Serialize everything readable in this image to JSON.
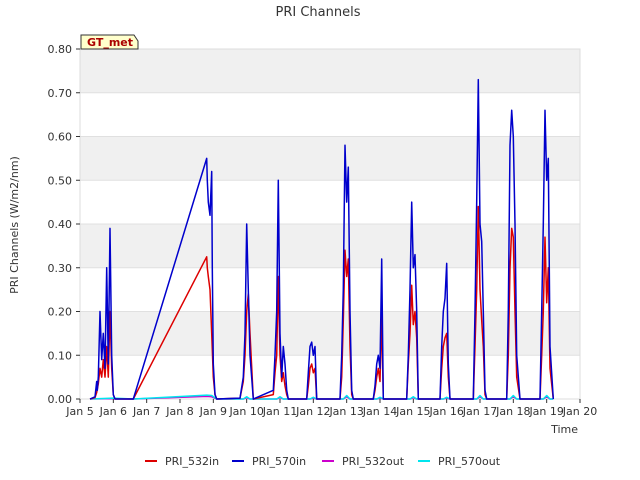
{
  "chart_data": {
    "type": "line",
    "title": "PRI Channels",
    "xlabel": "Time",
    "ylabel": "PRI Channels (W/m2/nm)",
    "badge": "GT_met",
    "xlim": [
      5,
      20
    ],
    "ylim": [
      0,
      0.8
    ],
    "x_ticks": [
      {
        "v": 5,
        "label": "Jan 5"
      },
      {
        "v": 6,
        "label": "Jan 6"
      },
      {
        "v": 7,
        "label": "Jan 7"
      },
      {
        "v": 8,
        "label": "Jan 8"
      },
      {
        "v": 9,
        "label": "Jan 9"
      },
      {
        "v": 10,
        "label": "Jan 10"
      },
      {
        "v": 11,
        "label": "Jan 11"
      },
      {
        "v": 12,
        "label": "Jan 12"
      },
      {
        "v": 13,
        "label": "Jan 13"
      },
      {
        "v": 14,
        "label": "Jan 14"
      },
      {
        "v": 15,
        "label": "Jan 15"
      },
      {
        "v": 16,
        "label": "Jan 16"
      },
      {
        "v": 17,
        "label": "Jan 17"
      },
      {
        "v": 18,
        "label": "Jan 18"
      },
      {
        "v": 19,
        "label": "Jan 19"
      },
      {
        "v": 20,
        "label": "Jan 20"
      }
    ],
    "y_ticks": [
      {
        "v": 0.0,
        "label": "0.00"
      },
      {
        "v": 0.1,
        "label": "0.10"
      },
      {
        "v": 0.2,
        "label": "0.20"
      },
      {
        "v": 0.3,
        "label": "0.30"
      },
      {
        "v": 0.4,
        "label": "0.40"
      },
      {
        "v": 0.5,
        "label": "0.50"
      },
      {
        "v": 0.6,
        "label": "0.60"
      },
      {
        "v": 0.7,
        "label": "0.70"
      },
      {
        "v": 0.8,
        "label": "0.80"
      }
    ],
    "legend_position": "bottom",
    "series": [
      {
        "name": "PRI_532in",
        "color": "#dd0000",
        "x": [
          5.3,
          5.45,
          5.5,
          5.55,
          5.6,
          5.65,
          5.7,
          5.75,
          5.8,
          5.85,
          5.9,
          5.95,
          6.0,
          6.05,
          6.6,
          8.8,
          8.82,
          8.85,
          8.9,
          8.95,
          9.0,
          9.05,
          9.1,
          9.8,
          9.9,
          9.95,
          10.0,
          10.05,
          10.1,
          10.2,
          10.8,
          10.85,
          10.9,
          10.95,
          11.0,
          11.05,
          11.1,
          11.15,
          11.2,
          11.25,
          11.8,
          11.85,
          11.9,
          11.95,
          12.0,
          12.05,
          12.1,
          12.8,
          12.85,
          12.9,
          12.95,
          13.0,
          13.05,
          13.1,
          13.15,
          13.2,
          13.8,
          13.85,
          13.9,
          13.95,
          14.0,
          14.05,
          14.1,
          14.8,
          14.85,
          14.9,
          14.95,
          15.0,
          15.05,
          15.1,
          15.15,
          15.8,
          15.85,
          15.9,
          15.95,
          16.0,
          16.05,
          16.1,
          16.8,
          16.85,
          16.9,
          16.95,
          17.0,
          17.05,
          17.1,
          17.15,
          17.2,
          17.8,
          17.85,
          17.9,
          17.95,
          18.0,
          18.05,
          18.1,
          18.2,
          18.8,
          18.85,
          18.9,
          18.95,
          19.0,
          19.05,
          19.1,
          19.2
        ],
        "y": [
          0,
          0.003,
          0.015,
          0.035,
          0.07,
          0.05,
          0.09,
          0.05,
          0.12,
          0.05,
          0.2,
          0.07,
          0.01,
          0,
          0,
          0.325,
          0.3,
          0.28,
          0.25,
          0.15,
          0.05,
          0.01,
          0,
          0.002,
          0.04,
          0.1,
          0.2,
          0.24,
          0.15,
          0,
          0.01,
          0.06,
          0.1,
          0.28,
          0.1,
          0.04,
          0.06,
          0.03,
          0.01,
          0,
          0,
          0.03,
          0.07,
          0.08,
          0.06,
          0.07,
          0,
          0,
          0.05,
          0.18,
          0.34,
          0.28,
          0.32,
          0.12,
          0.01,
          0,
          0,
          0.02,
          0.05,
          0.07,
          0.04,
          0.19,
          0,
          0,
          0.08,
          0.15,
          0.26,
          0.17,
          0.2,
          0.14,
          0,
          0,
          0.07,
          0.12,
          0.14,
          0.15,
          0.05,
          0,
          0,
          0.12,
          0.25,
          0.44,
          0.25,
          0.18,
          0.12,
          0.01,
          0,
          0,
          0.1,
          0.3,
          0.39,
          0.37,
          0.2,
          0.05,
          0,
          0,
          0.1,
          0.2,
          0.37,
          0.22,
          0.3,
          0.07,
          0
        ]
      },
      {
        "name": "PRI_570in",
        "color": "#0000cc",
        "x": [
          5.3,
          5.45,
          5.5,
          5.52,
          5.55,
          5.6,
          5.65,
          5.7,
          5.75,
          5.8,
          5.85,
          5.9,
          5.95,
          6.0,
          6.05,
          6.6,
          8.8,
          8.82,
          8.85,
          8.9,
          8.95,
          8.97,
          9.0,
          9.05,
          9.1,
          9.8,
          9.9,
          9.95,
          10.0,
          10.05,
          10.1,
          10.2,
          10.8,
          10.85,
          10.9,
          10.95,
          11.0,
          11.05,
          11.1,
          11.15,
          11.2,
          11.25,
          11.8,
          11.85,
          11.9,
          11.95,
          12.0,
          12.05,
          12.1,
          12.8,
          12.85,
          12.9,
          12.95,
          13.0,
          13.05,
          13.1,
          13.15,
          13.2,
          13.8,
          13.85,
          13.9,
          13.95,
          14.0,
          14.05,
          14.1,
          14.8,
          14.85,
          14.9,
          14.95,
          15.0,
          15.05,
          15.1,
          15.15,
          15.8,
          15.85,
          15.9,
          15.95,
          16.0,
          16.05,
          16.1,
          16.8,
          16.85,
          16.9,
          16.95,
          17.0,
          17.05,
          17.1,
          17.15,
          17.2,
          17.8,
          17.85,
          17.9,
          17.95,
          18.0,
          18.05,
          18.1,
          18.2,
          18.8,
          18.85,
          18.9,
          18.95,
          19.0,
          19.05,
          19.1,
          19.2
        ],
        "y": [
          0,
          0.005,
          0.04,
          0.02,
          0.05,
          0.2,
          0.09,
          0.15,
          0.07,
          0.3,
          0.08,
          0.39,
          0.1,
          0.01,
          0,
          0,
          0.55,
          0.5,
          0.45,
          0.42,
          0.52,
          0.3,
          0.08,
          0.01,
          0,
          0.002,
          0.05,
          0.15,
          0.4,
          0.25,
          0.1,
          0,
          0.02,
          0.1,
          0.2,
          0.5,
          0.15,
          0.05,
          0.12,
          0.08,
          0.02,
          0,
          0,
          0.06,
          0.12,
          0.13,
          0.1,
          0.12,
          0,
          0,
          0.1,
          0.25,
          0.58,
          0.45,
          0.53,
          0.2,
          0.02,
          0,
          0,
          0.03,
          0.08,
          0.1,
          0.07,
          0.32,
          0,
          0,
          0.1,
          0.25,
          0.45,
          0.3,
          0.33,
          0.2,
          0,
          0,
          0.12,
          0.2,
          0.23,
          0.31,
          0.08,
          0,
          0,
          0.2,
          0.45,
          0.73,
          0.4,
          0.36,
          0.2,
          0.02,
          0,
          0,
          0.2,
          0.58,
          0.66,
          0.6,
          0.4,
          0.1,
          0,
          0,
          0.2,
          0.4,
          0.66,
          0.5,
          0.55,
          0.12,
          0
        ]
      },
      {
        "name": "PRI_532out",
        "color": "#cc00cc",
        "x": [
          5.3,
          6.0,
          6.6,
          8.8,
          8.95,
          9.1,
          9.9,
          10.0,
          10.1,
          10.9,
          11.0,
          11.1,
          11.9,
          12.0,
          12.1,
          12.9,
          13.0,
          13.1,
          13.9,
          14.0,
          14.1,
          14.9,
          15.0,
          15.1,
          15.9,
          16.0,
          16.1,
          16.9,
          17.0,
          17.1,
          17.9,
          18.0,
          18.1,
          18.9,
          19.0,
          19.1,
          19.2
        ],
        "y": [
          0,
          0.001,
          0,
          0.006,
          0.005,
          0,
          0,
          0.003,
          0,
          0,
          0.003,
          0,
          0,
          0.002,
          0,
          0,
          0.005,
          0,
          0,
          0.002,
          0,
          0,
          0.003,
          0,
          0,
          0.002,
          0,
          0,
          0.005,
          0,
          0,
          0.005,
          0,
          0,
          0.005,
          0,
          0
        ]
      },
      {
        "name": "PRI_570out",
        "color": "#00e5ee",
        "x": [
          5.3,
          6.0,
          6.6,
          8.8,
          8.95,
          9.1,
          9.9,
          10.0,
          10.1,
          10.9,
          11.0,
          11.1,
          11.9,
          12.0,
          12.1,
          12.9,
          13.0,
          13.1,
          13.9,
          14.0,
          14.1,
          14.9,
          15.0,
          15.1,
          15.9,
          16.0,
          16.1,
          16.9,
          17.0,
          17.1,
          17.9,
          18.0,
          18.1,
          18.9,
          19.0,
          19.1,
          19.2
        ],
        "y": [
          0,
          0.002,
          0,
          0.009,
          0.008,
          0,
          0,
          0.005,
          0,
          0,
          0.005,
          0,
          0,
          0.004,
          0,
          0,
          0.008,
          0,
          0,
          0.004,
          0,
          0,
          0.005,
          0,
          0,
          0.004,
          0,
          0,
          0.008,
          0,
          0,
          0.008,
          0,
          0,
          0.008,
          0,
          0
        ]
      }
    ]
  }
}
